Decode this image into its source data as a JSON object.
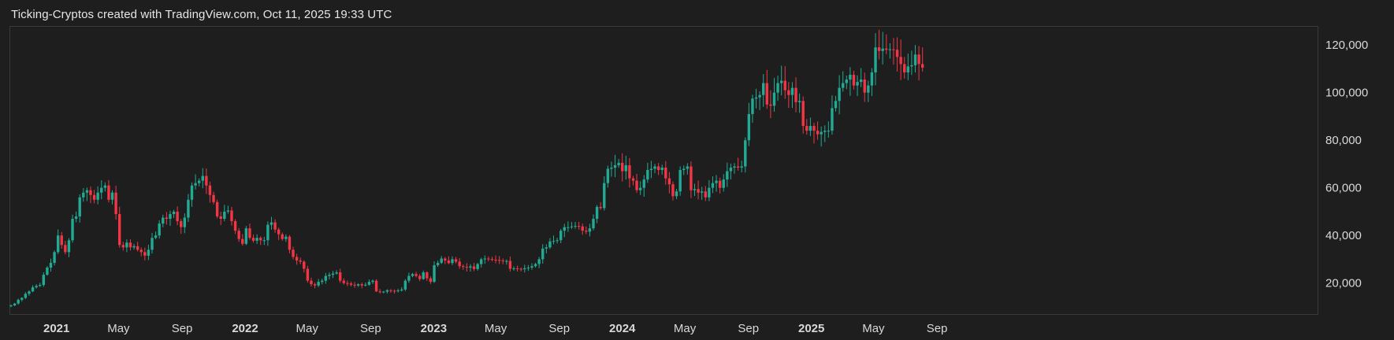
{
  "header": {
    "title": "Ticking-Cryptos created with TradingView.com, Oct 11, 2025 19:33 UTC"
  },
  "colors": {
    "up": "#22ab94",
    "down": "#f23645",
    "background": "#1e1e1e",
    "border": "#3a3a3a",
    "text": "#d9d9d9"
  },
  "chart_data": {
    "type": "candlestick",
    "interval": "weekly",
    "title": "",
    "xlabel": "",
    "ylabel": "",
    "ylim": [
      7000,
      128000
    ],
    "grid": false,
    "y_ticks": [
      "20,000",
      "40,000",
      "60,000",
      "80,000",
      "100,000",
      "120,000"
    ],
    "y_tick_values": [
      20000,
      40000,
      60000,
      80000,
      100000,
      120000
    ],
    "x_ticks": [
      {
        "label": "2021",
        "date": "2021-01-01",
        "bold": true
      },
      {
        "label": "May",
        "date": "2021-05-01",
        "bold": false
      },
      {
        "label": "Sep",
        "date": "2021-09-01",
        "bold": false
      },
      {
        "label": "2022",
        "date": "2022-01-01",
        "bold": true
      },
      {
        "label": "May",
        "date": "2022-05-01",
        "bold": false
      },
      {
        "label": "Sep",
        "date": "2022-09-01",
        "bold": false
      },
      {
        "label": "2023",
        "date": "2023-01-01",
        "bold": true
      },
      {
        "label": "May",
        "date": "2023-05-01",
        "bold": false
      },
      {
        "label": "Sep",
        "date": "2023-09-01",
        "bold": false
      },
      {
        "label": "2024",
        "date": "2024-01-01",
        "bold": true
      },
      {
        "label": "May",
        "date": "2024-05-01",
        "bold": false
      },
      {
        "label": "Sep",
        "date": "2024-09-01",
        "bold": false
      },
      {
        "label": "2025",
        "date": "2025-01-01",
        "bold": true
      },
      {
        "label": "May",
        "date": "2025-05-01",
        "bold": false
      },
      {
        "label": "Sep",
        "date": "2025-09-01",
        "bold": false
      }
    ],
    "series_start_date": "2020-10-05",
    "closes": [
      10600,
      11400,
      13000,
      13800,
      15500,
      16500,
      18200,
      18800,
      19200,
      23500,
      26500,
      28500,
      33000,
      40000,
      36000,
      33000,
      38000,
      47000,
      48000,
      56000,
      58000,
      59000,
      57000,
      55000,
      58000,
      60000,
      61000,
      55000,
      58000,
      49000,
      36000,
      35000,
      37000,
      35000,
      35500,
      34000,
      33000,
      31500,
      34000,
      39000,
      40000,
      45000,
      47500,
      47000,
      49000,
      50000,
      46000,
      43500,
      47500,
      55000,
      61000,
      62000,
      63000,
      65000,
      61000,
      57000,
      54000,
      48000,
      47000,
      50000,
      50500,
      46000,
      42000,
      38500,
      36500,
      43000,
      39000,
      37800,
      39000,
      38000,
      38000,
      44500,
      45500,
      42500,
      40500,
      38500,
      39500,
      34000,
      31000,
      29500,
      29000,
      26000,
      21000,
      19500,
      19000,
      20500,
      21000,
      23000,
      23500,
      24000,
      24500,
      21000,
      20000,
      19800,
      19300,
      19000,
      19500,
      19000,
      19300,
      20500,
      21000,
      16500,
      16300,
      16400,
      17000,
      16800,
      16600,
      16900,
      17300,
      21000,
      23000,
      23800,
      23000,
      21700,
      24500,
      22000,
      20500,
      27500,
      28500,
      30300,
      29500,
      28400,
      30000,
      29000,
      27100,
      26800,
      26500,
      27000,
      25900,
      28000,
      30000,
      30300,
      30100,
      29800,
      29700,
      29500,
      29200,
      29300,
      26000,
      26200,
      26000,
      25800,
      26200,
      26500,
      27100,
      28000,
      30000,
      34500,
      35000,
      37500,
      37700,
      38000,
      42000,
      43500,
      43500,
      43800,
      44000,
      43800,
      42000,
      41600,
      43000,
      47000,
      52000,
      51500,
      62000,
      68000,
      68500,
      69500,
      70500,
      67000,
      69500,
      64000,
      63000,
      59000,
      60000,
      63500,
      67500,
      68000,
      69000,
      67500,
      68500,
      64000,
      61500,
      56500,
      58500,
      67500,
      68000,
      69000,
      59000,
      59500,
      58000,
      58500,
      56000,
      60000,
      62000,
      63000,
      60000,
      63500,
      67000,
      68500,
      69000,
      68500,
      69000,
      80000,
      91000,
      97500,
      98000,
      99000,
      104000,
      95000,
      94500,
      100000,
      104000,
      105000,
      101000,
      99000,
      102000,
      96000,
      96500,
      86000,
      84000,
      86000,
      84000,
      82500,
      83500,
      84000,
      84000,
      93500,
      96500,
      102000,
      104000,
      105500,
      107500,
      103000,
      104500,
      105500,
      100000,
      103000,
      108500,
      119000,
      117500,
      118500,
      118000,
      118200,
      118000,
      115000,
      112000,
      108500,
      111000,
      111500,
      116000,
      112000,
      110500
    ]
  }
}
